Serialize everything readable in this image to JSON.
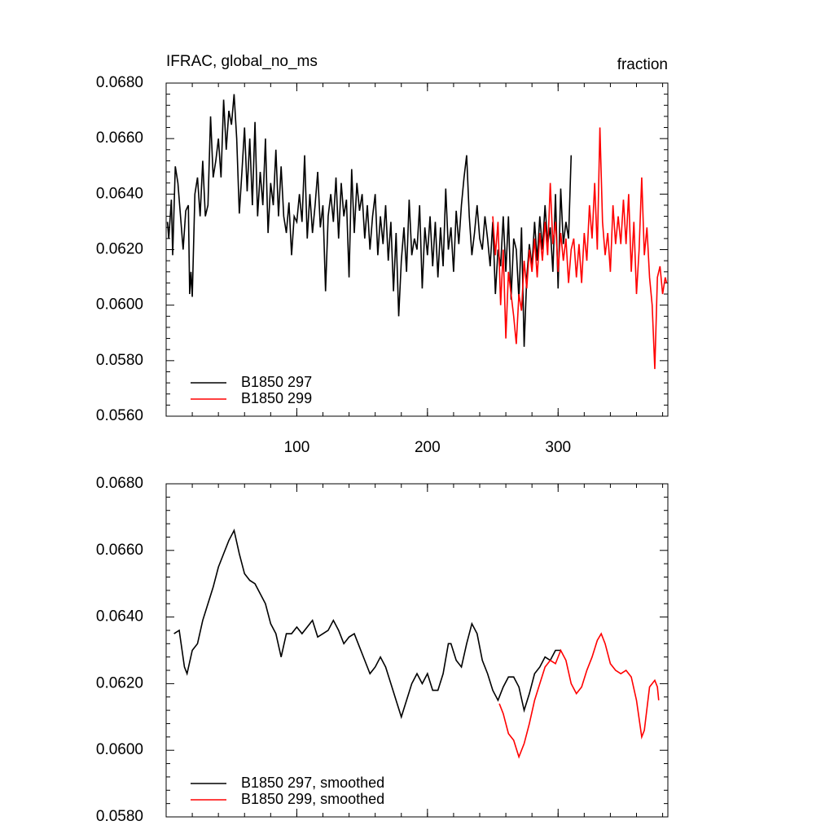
{
  "chart_data": [
    {
      "type": "line",
      "title": "IFRAC, global_no_ms",
      "subtitle": "fraction",
      "xlim": [
        0,
        384
      ],
      "xticks": [
        100,
        200,
        300
      ],
      "ylim": [
        0.056,
        0.068
      ],
      "yticks": [
        {
          "value": 0.056,
          "label": "0.0560"
        },
        {
          "value": 0.058,
          "label": "0.0580"
        },
        {
          "value": 0.06,
          "label": "0.0600"
        },
        {
          "value": 0.062,
          "label": "0.0620"
        },
        {
          "value": 0.064,
          "label": "0.0640"
        },
        {
          "value": 0.066,
          "label": "0.0660"
        },
        {
          "value": 0.068,
          "label": "0.0680"
        }
      ],
      "legend": "lower left",
      "series": [
        {
          "name": "B1850 297",
          "color": "#000000",
          "x": [
            1,
            2,
            4,
            5,
            7,
            9,
            11,
            13,
            15,
            17,
            18,
            19,
            20,
            22,
            24,
            26,
            28,
            30,
            32,
            34,
            36,
            38,
            40,
            42,
            44,
            46,
            48,
            50,
            52,
            54,
            56,
            58,
            60,
            62,
            64,
            66,
            68,
            70,
            72,
            74,
            76,
            78,
            80,
            82,
            84,
            86,
            88,
            90,
            92,
            94,
            96,
            98,
            100,
            102,
            104,
            106,
            108,
            110,
            112,
            114,
            116,
            118,
            120,
            122,
            124,
            126,
            128,
            130,
            132,
            134,
            136,
            138,
            140,
            142,
            144,
            146,
            148,
            150,
            152,
            154,
            156,
            158,
            160,
            162,
            164,
            166,
            168,
            170,
            172,
            174,
            176,
            178,
            180,
            182,
            184,
            186,
            188,
            190,
            192,
            194,
            196,
            198,
            200,
            202,
            204,
            206,
            208,
            210,
            212,
            214,
            216,
            218,
            220,
            222,
            224,
            226,
            228,
            230,
            232,
            234,
            236,
            238,
            240,
            242,
            244,
            246,
            248,
            250,
            252,
            254,
            256,
            258,
            260,
            262,
            264,
            266,
            268,
            270,
            272,
            274,
            276,
            278,
            280,
            282,
            284,
            286,
            288,
            290,
            292,
            294,
            296,
            298,
            300,
            302,
            304,
            306,
            308,
            310
          ],
          "values": [
            0.063,
            0.0624,
            0.0638,
            0.0618,
            0.065,
            0.0644,
            0.0632,
            0.062,
            0.0634,
            0.0636,
            0.0604,
            0.0612,
            0.0603,
            0.064,
            0.0646,
            0.0632,
            0.0652,
            0.0632,
            0.0636,
            0.0668,
            0.0646,
            0.0652,
            0.066,
            0.0646,
            0.0674,
            0.0656,
            0.067,
            0.0665,
            0.0676,
            0.066,
            0.0633,
            0.0648,
            0.0664,
            0.0641,
            0.066,
            0.0636,
            0.0666,
            0.0632,
            0.0648,
            0.0636,
            0.066,
            0.0626,
            0.0644,
            0.0636,
            0.0656,
            0.0632,
            0.065,
            0.0632,
            0.0626,
            0.0637,
            0.0618,
            0.0632,
            0.063,
            0.064,
            0.063,
            0.0654,
            0.0624,
            0.064,
            0.0626,
            0.0636,
            0.0648,
            0.0628,
            0.0636,
            0.0605,
            0.0632,
            0.064,
            0.063,
            0.0646,
            0.0624,
            0.0644,
            0.0632,
            0.0638,
            0.061,
            0.0649,
            0.0626,
            0.0644,
            0.0634,
            0.064,
            0.0624,
            0.0636,
            0.062,
            0.0632,
            0.064,
            0.0618,
            0.0632,
            0.0622,
            0.0636,
            0.0616,
            0.063,
            0.0605,
            0.0626,
            0.0596,
            0.0616,
            0.0628,
            0.0612,
            0.0638,
            0.0618,
            0.0624,
            0.062,
            0.0636,
            0.0606,
            0.0628,
            0.0618,
            0.0632,
            0.0614,
            0.063,
            0.061,
            0.0628,
            0.0614,
            0.0642,
            0.062,
            0.0628,
            0.0612,
            0.0634,
            0.0622,
            0.0636,
            0.0646,
            0.0654,
            0.0632,
            0.0618,
            0.0626,
            0.0636,
            0.0624,
            0.062,
            0.0632,
            0.0624,
            0.0614,
            0.063,
            0.0604,
            0.062,
            0.0614,
            0.0632,
            0.0612,
            0.0632,
            0.0602,
            0.0624,
            0.062,
            0.0602,
            0.0628,
            0.0585,
            0.061,
            0.0622,
            0.0614,
            0.063,
            0.0616,
            0.0632,
            0.062,
            0.0636,
            0.0622,
            0.0628,
            0.0612,
            0.064,
            0.0606,
            0.0642,
            0.0622,
            0.063,
            0.0624,
            0.0654
          ]
        },
        {
          "name": "B1850 299",
          "color": "#ff0000",
          "x": [
            250,
            252,
            254,
            256,
            258,
            260,
            262,
            264,
            266,
            268,
            270,
            272,
            274,
            276,
            278,
            280,
            282,
            284,
            286,
            288,
            290,
            292,
            294,
            296,
            298,
            300,
            302,
            304,
            306,
            308,
            310,
            312,
            314,
            316,
            318,
            320,
            322,
            324,
            326,
            328,
            330,
            332,
            334,
            336,
            338,
            340,
            342,
            344,
            346,
            348,
            350,
            352,
            354,
            356,
            358,
            360,
            362,
            364,
            366,
            368,
            370,
            372,
            374,
            376,
            378,
            380,
            382,
            383
          ],
          "values": [
            0.0632,
            0.0618,
            0.063,
            0.06,
            0.062,
            0.0588,
            0.0612,
            0.0604,
            0.0596,
            0.0586,
            0.0604,
            0.0598,
            0.0616,
            0.0606,
            0.062,
            0.0612,
            0.0624,
            0.061,
            0.0626,
            0.0616,
            0.063,
            0.0618,
            0.0644,
            0.0622,
            0.063,
            0.0612,
            0.0626,
            0.0616,
            0.0624,
            0.0608,
            0.062,
            0.0624,
            0.061,
            0.0622,
            0.0608,
            0.0626,
            0.0616,
            0.0636,
            0.0624,
            0.0644,
            0.062,
            0.0664,
            0.063,
            0.0618,
            0.0626,
            0.0612,
            0.0636,
            0.0622,
            0.0632,
            0.0622,
            0.0638,
            0.0622,
            0.064,
            0.0612,
            0.063,
            0.0604,
            0.062,
            0.0646,
            0.0618,
            0.0628,
            0.061,
            0.06,
            0.0577,
            0.061,
            0.0614,
            0.0604,
            0.061,
            0.0608
          ]
        }
      ]
    },
    {
      "type": "line",
      "xlim": [
        0,
        384
      ],
      "ylim": [
        0.058,
        0.068
      ],
      "yticks": [
        {
          "value": 0.058,
          "label": "0.0580"
        },
        {
          "value": 0.06,
          "label": "0.0600"
        },
        {
          "value": 0.062,
          "label": "0.0620"
        },
        {
          "value": 0.064,
          "label": "0.0640"
        },
        {
          "value": 0.066,
          "label": "0.0660"
        },
        {
          "value": 0.068,
          "label": "0.0680"
        }
      ],
      "legend": "lower left",
      "series": [
        {
          "name": "B1850 297, smoothed",
          "color": "#000000",
          "x": [
            6,
            10,
            14,
            16,
            20,
            24,
            28,
            32,
            36,
            40,
            44,
            48,
            52,
            56,
            60,
            64,
            68,
            72,
            76,
            80,
            84,
            88,
            92,
            96,
            100,
            104,
            108,
            112,
            116,
            120,
            124,
            128,
            132,
            136,
            140,
            144,
            148,
            152,
            156,
            160,
            164,
            168,
            172,
            176,
            180,
            184,
            188,
            192,
            196,
            200,
            204,
            208,
            212,
            216,
            218,
            222,
            226,
            230,
            234,
            238,
            242,
            246,
            250,
            254,
            258,
            262,
            266,
            270,
            274,
            278,
            282,
            286,
            290,
            294,
            298,
            302
          ],
          "values": [
            0.0635,
            0.0636,
            0.0625,
            0.0623,
            0.063,
            0.0632,
            0.0639,
            0.0644,
            0.0649,
            0.0655,
            0.0659,
            0.0663,
            0.0666,
            0.0659,
            0.0653,
            0.0651,
            0.065,
            0.0647,
            0.0644,
            0.0638,
            0.0635,
            0.0628,
            0.0635,
            0.0635,
            0.0637,
            0.0635,
            0.0637,
            0.0639,
            0.0634,
            0.0635,
            0.0636,
            0.0639,
            0.0636,
            0.0632,
            0.0634,
            0.0635,
            0.0631,
            0.0627,
            0.0623,
            0.0625,
            0.0628,
            0.0625,
            0.062,
            0.0615,
            0.061,
            0.0615,
            0.062,
            0.0623,
            0.062,
            0.0623,
            0.0618,
            0.0618,
            0.0623,
            0.0632,
            0.0632,
            0.0627,
            0.0625,
            0.0632,
            0.0638,
            0.0635,
            0.0627,
            0.0623,
            0.0618,
            0.0615,
            0.0619,
            0.0622,
            0.0622,
            0.0619,
            0.0612,
            0.0617,
            0.0623,
            0.0625,
            0.0628,
            0.0627,
            0.063,
            0.063
          ]
        },
        {
          "name": "B1850 299, smoothed",
          "color": "#ff0000",
          "x": [
            255,
            258,
            262,
            266,
            270,
            274,
            278,
            282,
            286,
            290,
            294,
            298,
            302,
            306,
            310,
            314,
            318,
            322,
            326,
            330,
            333,
            336,
            340,
            344,
            348,
            352,
            356,
            360,
            364,
            366,
            370,
            374,
            376,
            377
          ],
          "values": [
            0.0614,
            0.0611,
            0.0605,
            0.0603,
            0.0598,
            0.0602,
            0.0608,
            0.0615,
            0.062,
            0.0625,
            0.0627,
            0.0626,
            0.063,
            0.0627,
            0.062,
            0.0617,
            0.0619,
            0.0624,
            0.0628,
            0.0633,
            0.0635,
            0.0632,
            0.0626,
            0.0624,
            0.0623,
            0.0624,
            0.0622,
            0.0615,
            0.0604,
            0.0606,
            0.0619,
            0.0621,
            0.0619,
            0.0615
          ]
        }
      ]
    }
  ]
}
